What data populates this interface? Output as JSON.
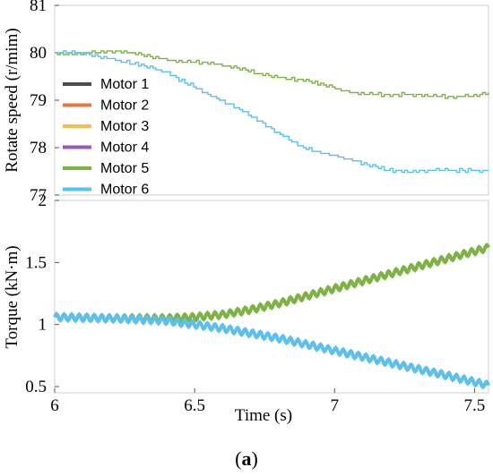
{
  "caption": {
    "open": "(",
    "letter": "a",
    "close": ")"
  },
  "chart_data": [
    {
      "type": "line",
      "ylabel": "Rotate speed (r/mim)",
      "xlabel": "",
      "xlim": [
        6,
        7.55
      ],
      "ylim": [
        77,
        81
      ],
      "yticks": [
        77,
        78,
        79,
        80,
        81
      ],
      "xticks": [
        6,
        6.5,
        7,
        7.5
      ],
      "show_x_tick_labels": false,
      "legend": {
        "position": "left",
        "entries": [
          "Motor 1",
          "Motor 2",
          "Motor 3",
          "Motor 4",
          "Motor 5",
          "Motor 6"
        ]
      },
      "colors": {
        "Motor 1": "#4d4d4d",
        "Motor 2": "#e8764a",
        "Motor 3": "#f5c04a",
        "Motor 4": "#9b59b6",
        "Motor 5": "#7cb342",
        "Motor 6": "#5bc0eb"
      },
      "series": [
        {
          "name": "Motor 5",
          "style": "step",
          "x": [
            6.0,
            6.1,
            6.2,
            6.3,
            6.4,
            6.5,
            6.6,
            6.7,
            6.8,
            6.9,
            7.0,
            7.1,
            7.2,
            7.3,
            7.4,
            7.55
          ],
          "y": [
            79.98,
            80.02,
            80.02,
            79.95,
            79.88,
            79.8,
            79.72,
            79.62,
            79.5,
            79.38,
            79.25,
            79.15,
            79.1,
            79.08,
            79.1,
            79.12
          ]
        },
        {
          "name": "Motor 6",
          "style": "step",
          "x": [
            6.0,
            6.1,
            6.2,
            6.3,
            6.4,
            6.5,
            6.6,
            6.7,
            6.8,
            6.9,
            7.0,
            7.1,
            7.2,
            7.3,
            7.4,
            7.55
          ],
          "y": [
            79.98,
            79.98,
            79.9,
            79.75,
            79.55,
            79.3,
            79.0,
            78.65,
            78.3,
            78.0,
            77.8,
            77.65,
            77.55,
            77.5,
            77.5,
            77.55
          ]
        }
      ]
    },
    {
      "type": "line",
      "ylabel": "Torque (kN·m)",
      "xlabel": "Time (s)",
      "xlim": [
        6,
        7.55
      ],
      "ylim": [
        0.45,
        2
      ],
      "yticks": [
        0.5,
        1,
        1.5,
        2
      ],
      "xticks": [
        6,
        6.5,
        7,
        7.5
      ],
      "series": [
        {
          "name": "Motor 5",
          "style": "ripple",
          "x": [
            6.0,
            6.2,
            6.4,
            6.5,
            6.6,
            6.7,
            6.8,
            6.9,
            7.0,
            7.1,
            7.2,
            7.3,
            7.4,
            7.55
          ],
          "y": [
            1.06,
            1.05,
            1.05,
            1.06,
            1.08,
            1.12,
            1.17,
            1.23,
            1.29,
            1.35,
            1.41,
            1.47,
            1.53,
            1.62
          ]
        },
        {
          "name": "Motor 6",
          "style": "ripple",
          "x": [
            6.0,
            6.2,
            6.4,
            6.5,
            6.6,
            6.7,
            6.8,
            6.9,
            7.0,
            7.1,
            7.2,
            7.3,
            7.4,
            7.55
          ],
          "y": [
            1.06,
            1.05,
            1.03,
            1.0,
            0.97,
            0.93,
            0.89,
            0.84,
            0.79,
            0.74,
            0.69,
            0.64,
            0.59,
            0.51
          ]
        }
      ]
    }
  ]
}
